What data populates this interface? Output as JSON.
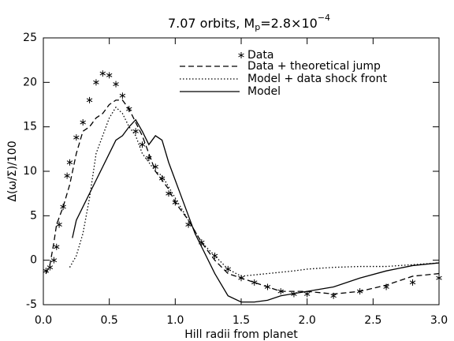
{
  "chart_data": {
    "type": "line",
    "title": [
      "7.07 orbits, M",
      "p",
      "=2.8×10",
      "−4"
    ],
    "xlabel": "Hill radii from planet",
    "ylabel": "Δ(ω/Σ)/100",
    "xlim": [
      0,
      3
    ],
    "ylim": [
      -5,
      25
    ],
    "xticks": [
      {
        "value": 0,
        "label": "0.0"
      },
      0.5,
      {
        "value": 1,
        "label": "1.0"
      },
      1.5,
      {
        "value": 2,
        "label": "2.0"
      },
      2.5,
      {
        "value": 3,
        "label": "3.0"
      }
    ],
    "yticks": [
      -5,
      0,
      5,
      10,
      15,
      20,
      25
    ],
    "grid": false,
    "legend": "upper right",
    "series": [
      {
        "name": "Data",
        "color": "#000000",
        "style": "asterisk",
        "x": [
          0.02,
          0.05,
          0.08,
          0.1,
          0.12,
          0.15,
          0.18,
          0.2,
          0.25,
          0.3,
          0.35,
          0.4,
          0.45,
          0.5,
          0.55,
          0.6,
          0.65,
          0.7,
          0.75,
          0.8,
          0.85,
          0.9,
          0.95,
          1.0,
          1.1,
          1.2,
          1.3,
          1.4,
          1.5,
          1.6,
          1.7,
          1.8,
          1.9,
          2.0,
          2.2,
          2.4,
          2.6,
          2.8,
          3.0
        ],
        "values": [
          -1.2,
          -0.8,
          0,
          1.5,
          4,
          6,
          9.5,
          11,
          13.8,
          15.5,
          18,
          20,
          21,
          20.8,
          19.8,
          18.5,
          17,
          14.5,
          13,
          11.5,
          10.5,
          9.2,
          7.5,
          6.5,
          4,
          2,
          0.5,
          -1,
          -2,
          -2.5,
          -3,
          -3.5,
          -3.8,
          -3.8,
          -4,
          -3.5,
          -3,
          -2.5,
          -2
        ]
      },
      {
        "name": "Data + theoretical jump",
        "color": "#000000",
        "style": "dashed",
        "x": [
          0.02,
          0.05,
          0.08,
          0.1,
          0.15,
          0.2,
          0.25,
          0.3,
          0.35,
          0.4,
          0.45,
          0.5,
          0.55,
          0.6,
          0.65,
          0.7,
          0.75,
          0.8,
          0.85,
          0.9,
          0.95,
          1.0,
          1.1,
          1.2,
          1.3,
          1.4,
          1.5,
          1.6,
          1.8,
          2.0,
          2.2,
          2.4,
          2.6,
          2.8,
          3.0
        ],
        "values": [
          -1.5,
          -0.5,
          2,
          4,
          6,
          8.5,
          12,
          14.5,
          15,
          16,
          16.5,
          17.5,
          18,
          18,
          17,
          15.5,
          14,
          12,
          10,
          9,
          8,
          6.5,
          4.5,
          2,
          0,
          -1.5,
          -2,
          -2.5,
          -3.5,
          -3.5,
          -3.8,
          -3.5,
          -2.8,
          -1.8,
          -1.5
        ]
      },
      {
        "name": "Model + data shock front",
        "color": "#000000",
        "style": "dotted",
        "x": [
          0.2,
          0.25,
          0.3,
          0.35,
          0.4,
          0.45,
          0.5,
          0.55,
          0.6,
          0.65,
          0.7,
          0.75,
          0.8,
          0.85,
          0.9,
          1.0,
          1.1,
          1.2,
          1.3,
          1.4,
          1.5,
          1.7,
          1.9,
          2.0,
          2.2,
          2.4,
          2.6,
          2.8,
          3.0
        ],
        "values": [
          -0.8,
          0.5,
          3,
          7,
          12,
          14,
          16,
          17.2,
          16.5,
          15,
          14,
          12,
          11,
          10,
          9.5,
          7,
          4.5,
          2,
          0.5,
          -1,
          -1.8,
          -1.5,
          -1.2,
          -1,
          -0.8,
          -0.7,
          -0.7,
          -0.5,
          -0.3
        ]
      },
      {
        "name": "Model",
        "color": "#000000",
        "style": "solid",
        "x": [
          0.22,
          0.25,
          0.3,
          0.4,
          0.5,
          0.55,
          0.6,
          0.65,
          0.7,
          0.75,
          0.8,
          0.85,
          0.9,
          0.95,
          1.0,
          1.05,
          1.1,
          1.15,
          1.2,
          1.3,
          1.4,
          1.5,
          1.6,
          1.7,
          1.8,
          2.0,
          2.2,
          2.4,
          2.6,
          2.8,
          3.0
        ],
        "values": [
          2.5,
          4.5,
          6,
          9,
          12,
          13.5,
          14,
          15,
          15.8,
          14.5,
          13,
          14,
          13.5,
          11,
          9,
          7,
          5,
          3,
          1.5,
          -1.5,
          -4,
          -4.7,
          -4.7,
          -4.5,
          -4,
          -3.5,
          -3,
          -2,
          -1.2,
          -0.6,
          -0.3
        ]
      }
    ]
  }
}
